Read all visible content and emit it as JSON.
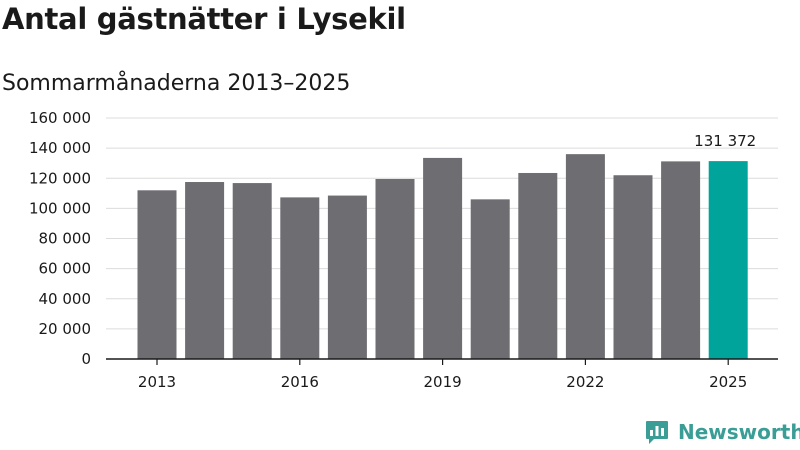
{
  "header": {
    "title": "Antal gästnätter i Lysekil",
    "subtitle": "Sommarmånaderna 2013–2025"
  },
  "brand": {
    "name": "Newsworthy",
    "icon": "newsworthy-logo-icon",
    "color": "#3a9e96"
  },
  "colors": {
    "bar": "#6e6d72",
    "highlight": "#00a49b",
    "grid": "#dcdcdc",
    "axis": "#1a1a1a"
  },
  "chart_data": {
    "type": "bar",
    "title": "Antal gästnätter i Lysekil",
    "subtitle": "Sommarmånaderna 2013–2025",
    "xlabel": "",
    "ylabel": "",
    "categories": [
      "2013",
      "2014",
      "2015",
      "2016",
      "2017",
      "2018",
      "2019",
      "2020",
      "2021",
      "2022",
      "2023",
      "2024",
      "2025"
    ],
    "x_tick_labels": [
      "2013",
      "2016",
      "2019",
      "2022",
      "2025"
    ],
    "values": [
      112000,
      117500,
      116800,
      107300,
      108500,
      119500,
      133500,
      106000,
      123500,
      136000,
      122000,
      131200,
      131372
    ],
    "ylim": [
      0,
      160000
    ],
    "yticks": [
      0,
      20000,
      40000,
      60000,
      80000,
      100000,
      120000,
      140000,
      160000
    ],
    "ytick_labels": [
      "0",
      "20 000",
      "40 000",
      "60 000",
      "80 000",
      "100 000",
      "120 000",
      "140 000",
      "160 000"
    ],
    "highlight_category": "2025",
    "data_labels": [
      {
        "category": "2025",
        "text": "131 372"
      }
    ],
    "grid": true,
    "legend": "none"
  }
}
